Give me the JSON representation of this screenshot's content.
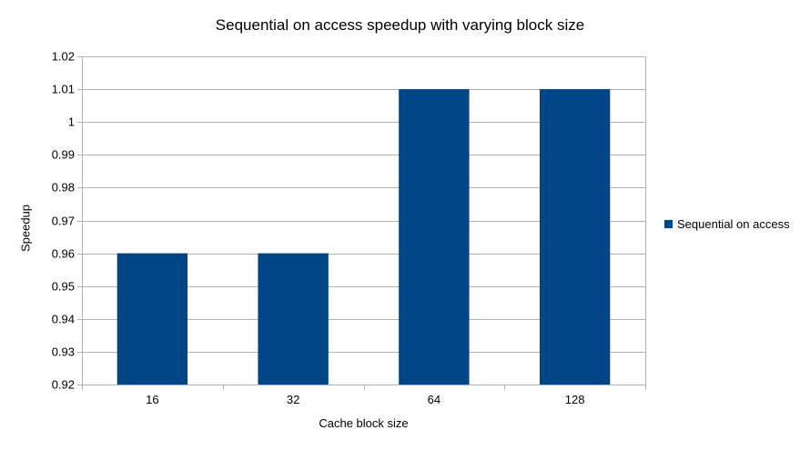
{
  "chart_data": {
    "type": "bar",
    "title": "Sequential on access speedup with varying block size",
    "xlabel": "Cache block size",
    "ylabel": "Speedup",
    "categories": [
      "16",
      "32",
      "64",
      "128"
    ],
    "series": [
      {
        "name": "Sequential on access",
        "values": [
          0.96,
          0.96,
          1.01,
          1.01
        ],
        "color": "#004586"
      }
    ],
    "ylim": [
      0.92,
      1.02
    ],
    "yticks": [
      "0.92",
      "0.93",
      "0.94",
      "0.95",
      "0.96",
      "0.97",
      "0.98",
      "0.99",
      "1",
      "1.01",
      "1.02"
    ],
    "grid": true,
    "legend": "right"
  }
}
